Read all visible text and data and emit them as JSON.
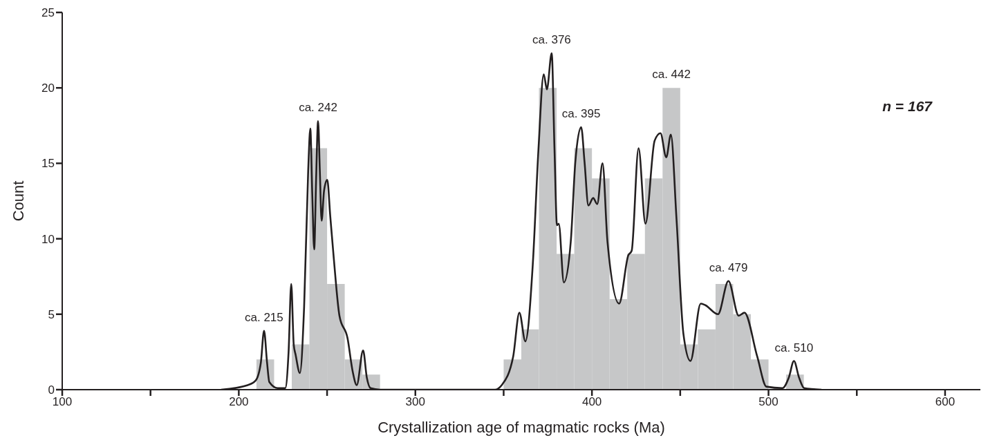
{
  "chart_data": {
    "type": "histogram",
    "xlabel": "Crystallization age of magmatic rocks (Ma)",
    "ylabel": "Count",
    "xlim": [
      100,
      620
    ],
    "xticks": [
      100,
      {
        "value": 150,
        "label": null
      },
      200,
      {
        "value": 250,
        "label": null
      },
      300,
      {
        "value": 350,
        "label": null
      },
      400,
      {
        "value": 450,
        "label": null
      },
      500,
      {
        "value": 550,
        "label": null
      },
      600
    ],
    "ylim": [
      0,
      25
    ],
    "yticks": [
      0,
      5,
      10,
      15,
      20,
      25
    ],
    "marker": "none",
    "line_style": "solid",
    "series": [
      {
        "color": "#c6c7c8",
        "bins": [
          210,
          220,
          230,
          240,
          250,
          260,
          270,
          280,
          290,
          300,
          310,
          320,
          330,
          340,
          350,
          360,
          370,
          380,
          390,
          400,
          410,
          420,
          430,
          440,
          450,
          460,
          470,
          480,
          490,
          500,
          510,
          520
        ],
        "values": [
          2,
          0,
          3,
          16,
          7,
          2,
          1,
          0,
          0,
          0,
          0,
          0,
          0,
          0,
          2,
          4,
          20,
          9,
          16,
          14,
          6,
          9,
          14,
          20,
          3,
          4,
          7,
          5,
          2,
          0,
          1
        ]
      },
      {
        "type": "line",
        "color": "#231f20",
        "x": [
          190,
          205,
          209.5,
          212.5,
          214.3,
          216,
          217.3,
          222,
          226.3,
          228.2,
          229.7,
          231.1,
          232.2,
          234.6,
          237,
          239.3,
          240.5,
          241.6,
          242.7,
          243.8,
          244.9,
          245.9,
          246.9,
          248.3,
          250.1,
          251.8,
          253.8,
          257,
          261.6,
          264.5,
          266.8,
          270.4,
          272.5,
          274.6,
          280,
          345,
          348.9,
          355.4,
          358.9,
          362.3,
          366.5,
          369.7,
          372.7,
          374.5,
          377.2,
          378.8,
          380.2,
          381.2,
          384.1,
          388,
          390.6,
          393.9,
          395.8,
          398,
          400.7,
          403,
          406,
          408.8,
          415.4,
          420.6,
          422.5,
          426.4,
          430.3,
          435.5,
          438.8,
          442.1,
          444.7,
          447.9,
          451.8,
          455.8,
          461.6,
          464.2,
          471.4,
          477.3,
          483.1,
          486.4,
          493.6,
          498.8,
          507.9,
          511.5,
          514.4,
          517.3,
          520.2,
          530
        ],
        "values": [
          0,
          0.3,
          0.6,
          1.8,
          3.9,
          1.8,
          0.5,
          0.1,
          0.1,
          2.5,
          7.0,
          3.0,
          2.3,
          1.1,
          5.5,
          14.5,
          17.3,
          13.0,
          9.3,
          14.0,
          17.8,
          14.5,
          11.2,
          13.2,
          13.9,
          11.5,
          8.7,
          4.9,
          3.4,
          1.2,
          0.3,
          2.6,
          0.8,
          0.1,
          0,
          0,
          0.3,
          2.2,
          5.1,
          3.2,
          8.3,
          15.9,
          20.9,
          19.9,
          22.3,
          15.9,
          10.9,
          11.0,
          7.1,
          9.8,
          15.1,
          17.4,
          15.1,
          12.2,
          12.7,
          12.3,
          15.0,
          9.8,
          5.7,
          8.9,
          9.2,
          16.0,
          11.0,
          16.5,
          17.0,
          15.4,
          16.9,
          11.3,
          3.7,
          1.9,
          5.7,
          5.6,
          5.0,
          7.2,
          4.9,
          5.1,
          2.2,
          0.2,
          0.1,
          0.8,
          1.9,
          0.8,
          0.1,
          0
        ]
      }
    ],
    "annotations": [
      {
        "text": "ca. 215",
        "x": 214.3,
        "y": 3.9
      },
      {
        "text": "ca. 242",
        "x": 244.9,
        "y": 17.8
      },
      {
        "text": "ca. 376",
        "x": 377.2,
        "y": 22.3
      },
      {
        "text": "ca. 395",
        "x": 393.9,
        "y": 17.4
      },
      {
        "text": "ca. 442",
        "x": 445,
        "y": 20
      },
      {
        "text": "ca. 479",
        "x": 477.3,
        "y": 7.2
      },
      {
        "text": "ca. 510",
        "x": 514.4,
        "y": 1.9
      },
      "n = 167"
    ]
  }
}
